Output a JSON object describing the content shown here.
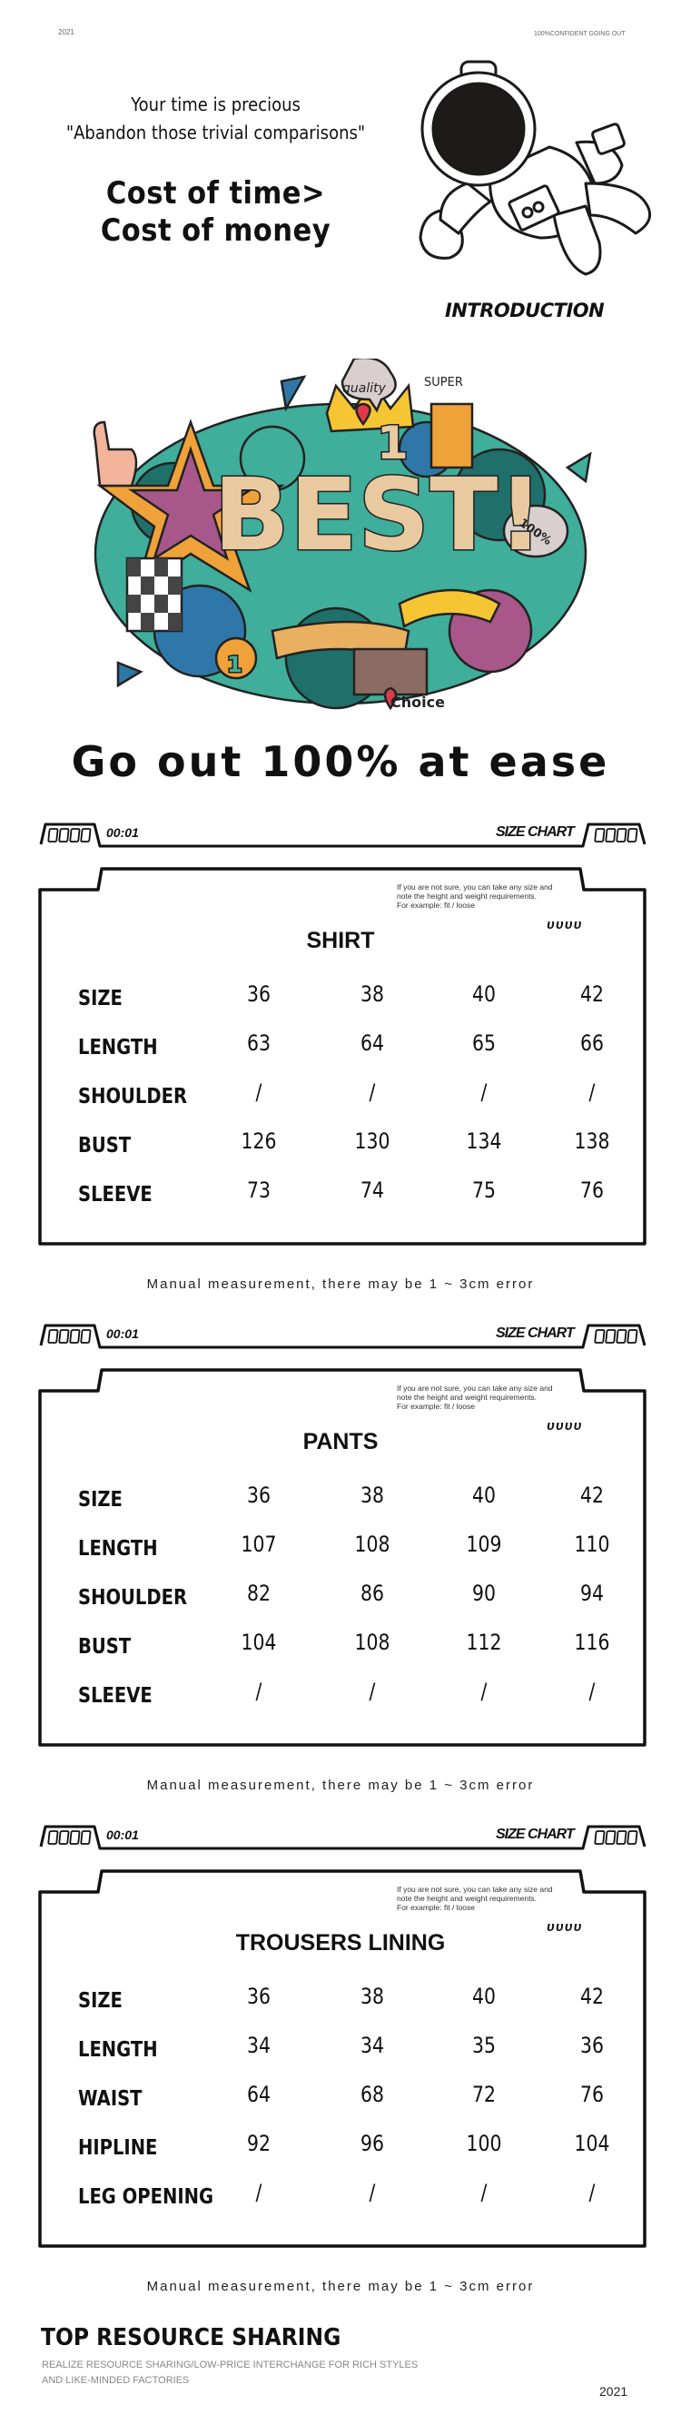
{
  "top": {
    "year": "2021",
    "tagline": "100%CONFIDENT GOING OUT"
  },
  "intro": {
    "line1": "Your time is precious",
    "line2": "\"Abandon those trivial comparisons\"",
    "cost1": "Cost of time>",
    "cost2": "Cost of money",
    "introduction": "INTRODUCTION"
  },
  "illustration": {
    "lettering": {
      "main": "BEST!",
      "quality": "quality",
      "super": "SUPER",
      "percent": "100%",
      "choice": "Choice",
      "one": "1"
    },
    "colors": {
      "teal": "#3fae9a",
      "dark_teal": "#1f6f6a",
      "beige": "#e9c9a0",
      "pink": "#d9a8a0",
      "orange": "#f0a23a",
      "yellow": "#f5c534",
      "red": "#e0394c",
      "purple": "#a7578a",
      "blue": "#2f77a8"
    }
  },
  "slogan": "Go out 100% at ease",
  "section_header": {
    "time": "00:01",
    "label": "SIZE CHART",
    "badge": "ᴜᴜᴜᴜ"
  },
  "note": {
    "line1": "If you are not sure, you can take any size and",
    "line2": "note the height and weight requirements.",
    "line3": "For example: fit / loose"
  },
  "tables": [
    {
      "title": "SHIRT",
      "rows": [
        {
          "label": "SIZE",
          "values": [
            "36",
            "38",
            "40",
            "42"
          ]
        },
        {
          "label": "LENGTH",
          "values": [
            "63",
            "64",
            "65",
            "66"
          ]
        },
        {
          "label": "SHOULDER",
          "values": [
            "/",
            "/",
            "/",
            "/"
          ]
        },
        {
          "label": "BUST",
          "values": [
            "126",
            "130",
            "134",
            "138"
          ]
        },
        {
          "label": "SLEEVE",
          "values": [
            "73",
            "74",
            "75",
            "76"
          ]
        }
      ]
    },
    {
      "title": "PANTS",
      "rows": [
        {
          "label": "SIZE",
          "values": [
            "36",
            "38",
            "40",
            "42"
          ]
        },
        {
          "label": "LENGTH",
          "values": [
            "107",
            "108",
            "109",
            "110"
          ]
        },
        {
          "label": "SHOULDER",
          "values": [
            "82",
            "86",
            "90",
            "94"
          ]
        },
        {
          "label": "BUST",
          "values": [
            "104",
            "108",
            "112",
            "116"
          ]
        },
        {
          "label": "SLEEVE",
          "values": [
            "/",
            "/",
            "/",
            "/"
          ]
        }
      ]
    },
    {
      "title": "TROUSERS LINING",
      "rows": [
        {
          "label": "SIZE",
          "values": [
            "36",
            "38",
            "40",
            "42"
          ]
        },
        {
          "label": "LENGTH",
          "values": [
            "34",
            "34",
            "35",
            "36"
          ]
        },
        {
          "label": "WAIST",
          "values": [
            "64",
            "68",
            "72",
            "76"
          ]
        },
        {
          "label": "HIPLINE",
          "values": [
            "92",
            "96",
            "100",
            "104"
          ]
        },
        {
          "label": "LEG OPENING",
          "values": [
            "/",
            "/",
            "/",
            "/"
          ]
        }
      ]
    }
  ],
  "error_note": "Manual measurement, there may be 1 ~ 3cm error",
  "footer": {
    "title": "TOP RESOURCE SHARING",
    "subtitle": "REALIZE RESOURCE SHARING/LOW-PRICE INTERCHANGE FOR RICH STYLES AND LIKE-MINDED FACTORIES",
    "year": "2021"
  }
}
